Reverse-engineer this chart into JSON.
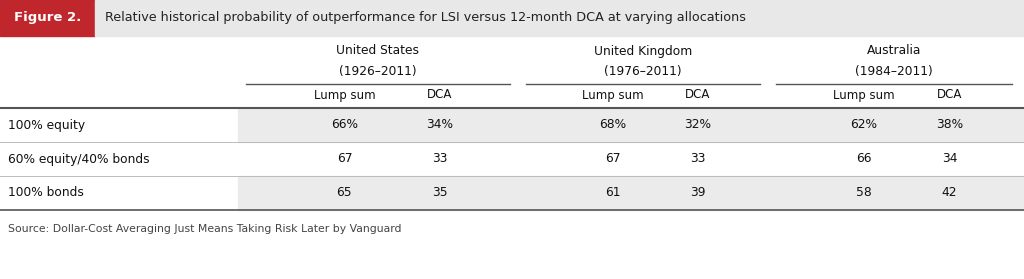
{
  "figure_label": "Figure 2.",
  "title": "Relative historical probability of outperformance for LSI versus 12-month DCA at varying allocations",
  "header_bg_color": "#c0272d",
  "title_bg_color": "#e8e8e8",
  "col_groups": [
    {
      "name": "United States",
      "years": "(1926–2011)",
      "cols": [
        "Lump sum",
        "DCA"
      ]
    },
    {
      "name": "United Kingdom",
      "years": "(1976–2011)",
      "cols": [
        "Lump sum",
        "DCA"
      ]
    },
    {
      "name": "Australia",
      "years": "(1984–2011)",
      "cols": [
        "Lump sum",
        "DCA"
      ]
    }
  ],
  "rows": [
    {
      "label": "100% equity",
      "shaded": true,
      "values": [
        "66%",
        "34%",
        "68%",
        "32%",
        "62%",
        "38%"
      ]
    },
    {
      "label": "60% equity/40% bonds",
      "shaded": false,
      "values": [
        "67",
        "33",
        "67",
        "33",
        "66",
        "34"
      ]
    },
    {
      "label": "100% bonds",
      "shaded": true,
      "values": [
        "65",
        "35",
        "61",
        "39",
        "58",
        "42"
      ]
    }
  ],
  "source_text": "Source: Dollar-Cost Averaging Just Means Taking Risk Later by Vanguard",
  "shaded_color": "#ebebeb",
  "white_color": "#ffffff",
  "header_red": "#c0272d",
  "header_grey": "#e8e8e8",
  "line_color": "#555555",
  "thin_line_color": "#bbbbbb",
  "text_color": "#111111",
  "source_color": "#444444"
}
